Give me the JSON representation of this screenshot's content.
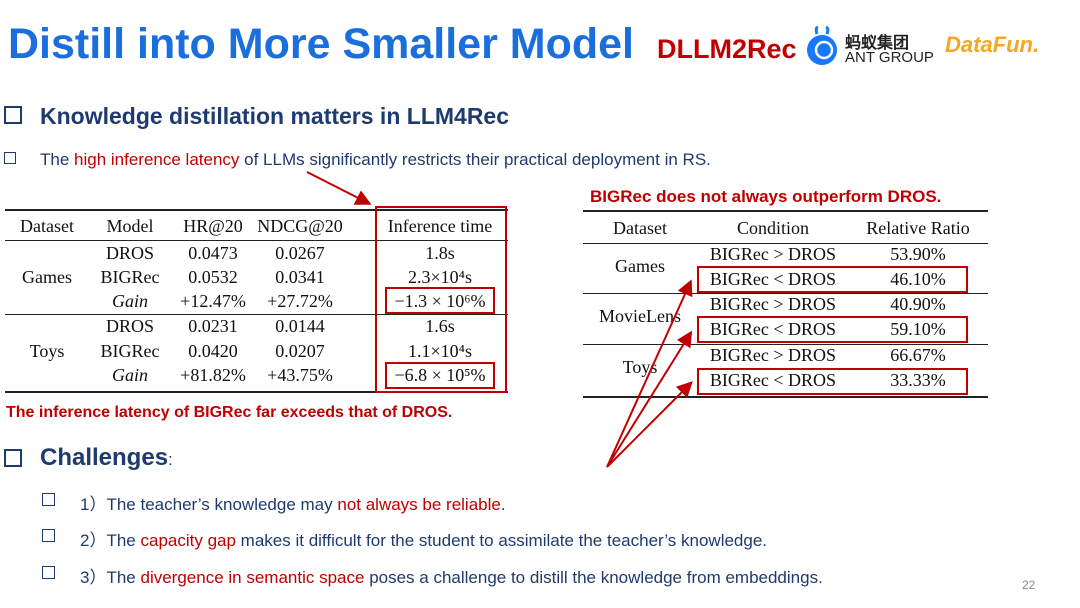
{
  "header": {
    "title": "Distill into More Smaller Model",
    "method": "DLLM2Rec",
    "ant_logo_cn": "蚂蚁集团",
    "ant_logo_en": "ANT GROUP",
    "datafun_logo": "DataFun."
  },
  "section1": {
    "heading": "Knowledge distillation matters in LLM4Rec",
    "line_pre": "The ",
    "line_hl": "high inference latency",
    "line_post": " of LLMs significantly restricts their practical deployment in RS."
  },
  "left_table": {
    "headers": [
      "Dataset",
      "Model",
      "HR@20",
      "NDCG@20",
      "Inference time"
    ],
    "rows": [
      [
        "Games",
        "DROS",
        "0.0473",
        "0.0267",
        "1.8s"
      ],
      [
        "",
        "BIGRec",
        "0.0532",
        "0.0341",
        "2.3×10⁴s"
      ],
      [
        "",
        "Gain",
        "+12.47%",
        "+27.72%",
        "−1.3 × 10⁶%"
      ],
      [
        "Toys",
        "DROS",
        "0.0231",
        "0.0144",
        "1.6s"
      ],
      [
        "",
        "BIGRec",
        "0.0420",
        "0.0207",
        "1.1×10⁴s"
      ],
      [
        "",
        "Gain",
        "+81.82%",
        "+43.75%",
        "−6.8 × 10⁵%"
      ]
    ],
    "note": "The inference latency of BIGRec far exceeds that of DROS."
  },
  "right_table": {
    "note": "BIGRec does not always outperform DROS.",
    "headers": [
      "Dataset",
      "Condition",
      "Relative Ratio"
    ],
    "rows": [
      [
        "Games",
        "BIGRec > DROS",
        "53.90%"
      ],
      [
        "",
        "BIGRec < DROS",
        "46.10%"
      ],
      [
        "MovieLens",
        "BIGRec > DROS",
        "40.90%"
      ],
      [
        "",
        "BIGRec < DROS",
        "59.10%"
      ],
      [
        "Toys",
        "BIGRec > DROS",
        "66.67%"
      ],
      [
        "",
        "BIGRec < DROS",
        "33.33%"
      ]
    ]
  },
  "challenges": {
    "heading": "Challenges",
    "colon": ":",
    "items": [
      {
        "num": "1）",
        "pre": "The teacher’s knowledge may ",
        "hl": "not always be reliable",
        "post": "."
      },
      {
        "num": "2）",
        "pre": "The ",
        "hl": "capacity gap",
        "post": " makes it difficult for the student to assimilate the teacher’s knowledge."
      },
      {
        "num": "3）",
        "pre": "The ",
        "hl": "divergence in semantic space",
        "post": " poses a challenge to distill the knowledge from embeddings."
      }
    ]
  },
  "page_number": "22",
  "colors": {
    "title": "#1a6fdc",
    "accent_red": "#c00000",
    "text_blue": "#1f3a6e"
  }
}
